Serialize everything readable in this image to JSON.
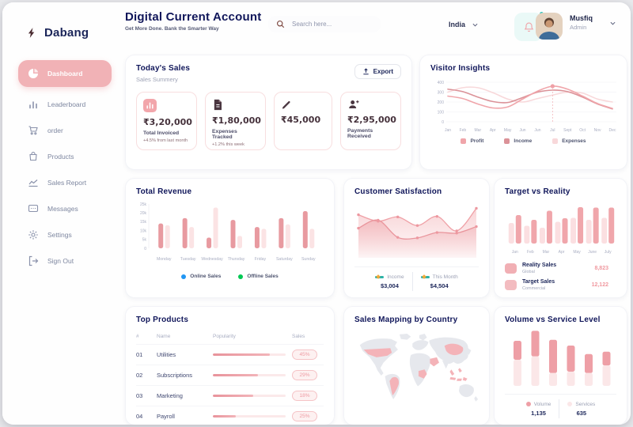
{
  "sidebar": {
    "brand": "Dabang",
    "items": [
      {
        "label": "Dashboard",
        "icon": "pie-chart-icon",
        "active": true
      },
      {
        "label": "Leaderboard",
        "icon": "bar-chart-icon",
        "active": false
      },
      {
        "label": "order",
        "icon": "cart-icon",
        "active": false
      },
      {
        "label": "Products",
        "icon": "bag-icon",
        "active": false
      },
      {
        "label": "Sales Report",
        "icon": "line-chart-icon",
        "active": false
      },
      {
        "label": "Messages",
        "icon": "message-icon",
        "active": false
      },
      {
        "label": "Settings",
        "icon": "gear-icon",
        "active": false
      },
      {
        "label": "Sign Out",
        "icon": "sign-out-icon",
        "active": false
      }
    ]
  },
  "header": {
    "title": "Digital Current Account",
    "subtitle": "Get More Done. Bank the Smarter Way",
    "search_placeholder": "Search here...",
    "country": "India",
    "user": {
      "name": "Musfiq",
      "role": "Admin"
    },
    "accent_colors": {
      "bell_bg": "#EAF9F7",
      "bell_icon": "#F0A3A8",
      "notification_dot": "#35C8C0"
    }
  },
  "todays_sales": {
    "title": "Today's Sales",
    "subtitle": "Sales Summery",
    "export_label": "Export",
    "cards": [
      {
        "icon": "chart-icon",
        "value": "₹3,20,000",
        "label": "Total Invoiced",
        "note": "+4.5% from last month"
      },
      {
        "icon": "file-icon",
        "value": "₹1,80,000",
        "label": "Expenses Tracked",
        "note": "+1.2% this week"
      },
      {
        "icon": "pencil-icon",
        "value": "₹45,000",
        "label": "",
        "note": ""
      },
      {
        "icon": "user-plus-icon",
        "value": "₹2,95,000",
        "label": "Payments Received",
        "note": ""
      }
    ]
  },
  "top_products": {
    "title": "Top Products",
    "headers": [
      "#",
      "Name",
      "Popularity",
      "Sales"
    ],
    "rows": [
      {
        "num": "01",
        "name": "Utilities",
        "popularity": 78,
        "sales": "45%"
      },
      {
        "num": "02",
        "name": "Subscriptions",
        "popularity": 62,
        "sales": "29%"
      },
      {
        "num": "03",
        "name": "Marketing",
        "popularity": 55,
        "sales": "18%"
      },
      {
        "num": "04",
        "name": "Payroll",
        "popularity": 32,
        "sales": "25%"
      }
    ]
  },
  "sales_map": {
    "title": "Sales Mapping by Country",
    "highlighted_countries": [
      "United States",
      "Brazil",
      "DR Congo",
      "Saudi Arabia",
      "China",
      "Indonesia"
    ],
    "highlight_color": "#F4B3B8",
    "base_color": "#E6E8ED"
  },
  "chart_data": [
    {
      "id": "visitor_insights",
      "type": "line",
      "title": "Visitor Insights",
      "x": [
        "Jan",
        "Feb",
        "Mar",
        "Apr",
        "May",
        "Jun",
        "Jun",
        "Jul",
        "Sept",
        "Oct",
        "Nov",
        "Dec"
      ],
      "ylim": [
        0,
        400
      ],
      "yticks": [
        0,
        100,
        200,
        300,
        400
      ],
      "series": [
        {
          "name": "Profit",
          "color": "#F0A5AA",
          "values": [
            260,
            235,
            180,
            140,
            150,
            230,
            310,
            360,
            330,
            260,
            185,
            135
          ]
        },
        {
          "name": "Income",
          "color": "#DB9298",
          "values": [
            330,
            305,
            250,
            205,
            195,
            245,
            300,
            320,
            305,
            250,
            180,
            130
          ]
        },
        {
          "name": "Expenses",
          "color": "#F8D8DA",
          "values": [
            300,
            345,
            345,
            295,
            230,
            200,
            235,
            270,
            300,
            290,
            230,
            200
          ]
        }
      ],
      "highlight": {
        "series": "Profit",
        "index": 7,
        "value": 360
      }
    },
    {
      "id": "total_revenue",
      "type": "bar",
      "title": "Total Revenue",
      "categories": [
        "Monday",
        "Tuesday",
        "Wednesday",
        "Thursday",
        "Friday",
        "Saturday",
        "Sunday"
      ],
      "ylim": [
        0,
        25000
      ],
      "ytick_labels": [
        "0",
        "5k",
        "10k",
        "15k",
        "20k",
        "25k"
      ],
      "series": [
        {
          "name": "Online Sales",
          "legend_color": "#2196F3",
          "bar_color": "#E89AA0",
          "values": [
            14000,
            17000,
            6000,
            16000,
            12000,
            17000,
            21000
          ]
        },
        {
          "name": "Offline Sales",
          "legend_color": "#00C853",
          "bar_color": "#FBE3E4",
          "values": [
            13000,
            12000,
            23000,
            7000,
            11000,
            13500,
            11000
          ]
        }
      ]
    },
    {
      "id": "customer_satisfaction",
      "type": "area",
      "title": "Customer Satisfaction",
      "series": [
        {
          "name": "Income",
          "total": "$3,004",
          "line_color": "#E9959C",
          "values": [
            55,
            70,
            38,
            37,
            47,
            46,
            58
          ]
        },
        {
          "name": "This Month",
          "total": "$4,504",
          "line_color": "#EFA0A6",
          "values": [
            80,
            68,
            76,
            60,
            77,
            50,
            92
          ]
        }
      ]
    },
    {
      "id": "target_vs_reality",
      "type": "bar",
      "title": "Target vs Reality",
      "categories": [
        "Jan",
        "Feb",
        "Mar",
        "Apr",
        "May",
        "June",
        "July"
      ],
      "series": [
        {
          "name": "Reality Sales",
          "subtitle": "Global",
          "total": "8,823",
          "bar_color": "#FBDFE1",
          "legend_color": "#F1AFB4",
          "values": [
            52,
            45,
            40,
            55,
            65,
            60,
            65
          ]
        },
        {
          "name": "Target Sales",
          "subtitle": "Commercial",
          "total": "12,122",
          "bar_color": "#F0A6AB",
          "legend_color": "#F3BCC0",
          "values": [
            72,
            60,
            83,
            64,
            92,
            91,
            91
          ]
        }
      ]
    },
    {
      "id": "volume_vs_service",
      "type": "stacked-bar",
      "title": "Volume vs Service Level",
      "series": [
        {
          "name": "Volume",
          "total": "1,135",
          "color": "#EE9FA6",
          "values": [
            40,
            54,
            70,
            55,
            40,
            29
          ]
        },
        {
          "name": "Services",
          "total": "635",
          "color": "#FBE7E8",
          "values": [
            55,
            62,
            27,
            30,
            27,
            43
          ]
        }
      ]
    }
  ]
}
